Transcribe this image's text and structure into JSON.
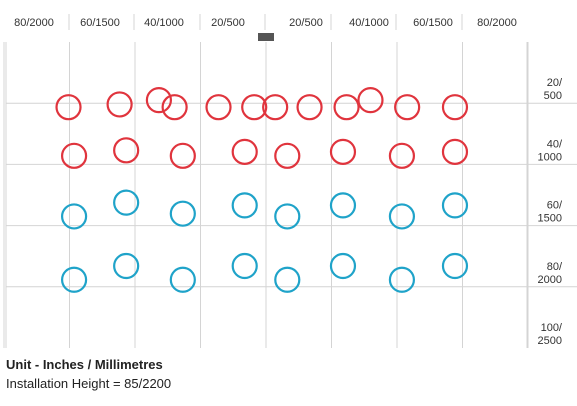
{
  "chart_data": {
    "type": "scatter",
    "title": "",
    "x_tick_labels": [
      "80/2000",
      "60/1500",
      "40/1000",
      "20/500",
      "20/500",
      "40/1000",
      "60/1500",
      "80/2000"
    ],
    "y_tick_labels": [
      {
        "line1": "20/",
        "line2": "500"
      },
      {
        "line1": "40/",
        "line2": "1000"
      },
      {
        "line1": "60/",
        "line2": "1500"
      },
      {
        "line1": "80/",
        "line2": "2000"
      },
      {
        "line1": "100/",
        "line2": "2500"
      }
    ],
    "x_range": [
      -90,
      90
    ],
    "y_range": [
      0,
      100
    ],
    "grid": true,
    "sensor_marker": {
      "x": 0,
      "y": 0
    },
    "colors": {
      "red": "#e0343d",
      "blue": "#1fa3c9",
      "grid": "#d4d4d4",
      "sensor": "#555555"
    },
    "series": [
      {
        "color": "red",
        "points": [
          {
            "x": -60.3,
            "y": 21.3
          },
          {
            "x": -44.7,
            "y": 20.4
          },
          {
            "x": -32.7,
            "y": 19.0
          },
          {
            "x": -27.9,
            "y": 21.3
          },
          {
            "x": -14.5,
            "y": 21.3
          },
          {
            "x": -3.6,
            "y": 21.3
          },
          {
            "x": 2.8,
            "y": 21.3
          },
          {
            "x": 13.3,
            "y": 21.3
          },
          {
            "x": 24.6,
            "y": 21.3
          },
          {
            "x": 31.9,
            "y": 19.0
          },
          {
            "x": 43.1,
            "y": 21.3
          },
          {
            "x": 57.7,
            "y": 21.3
          },
          {
            "x": -58.6,
            "y": 37.2
          },
          {
            "x": -42.7,
            "y": 35.4
          },
          {
            "x": -25.4,
            "y": 37.2
          },
          {
            "x": -6.5,
            "y": 35.9
          },
          {
            "x": 6.5,
            "y": 37.2
          },
          {
            "x": 23.5,
            "y": 35.9
          },
          {
            "x": 41.5,
            "y": 37.2
          },
          {
            "x": 57.7,
            "y": 35.9
          }
        ]
      },
      {
        "color": "blue",
        "points": [
          {
            "x": -58.6,
            "y": 57.0
          },
          {
            "x": -42.7,
            "y": 52.5
          },
          {
            "x": -25.4,
            "y": 56.1
          },
          {
            "x": -6.5,
            "y": 53.4
          },
          {
            "x": 6.5,
            "y": 57.0
          },
          {
            "x": 23.5,
            "y": 53.4
          },
          {
            "x": 41.5,
            "y": 57.0
          },
          {
            "x": 57.7,
            "y": 53.4
          },
          {
            "x": -58.6,
            "y": 77.7
          },
          {
            "x": -42.7,
            "y": 73.2
          },
          {
            "x": -25.4,
            "y": 77.7
          },
          {
            "x": -6.5,
            "y": 73.2
          },
          {
            "x": 6.5,
            "y": 77.7
          },
          {
            "x": 23.5,
            "y": 73.2
          },
          {
            "x": 41.5,
            "y": 77.7
          },
          {
            "x": 57.7,
            "y": 73.2
          }
        ]
      }
    ]
  },
  "caption": {
    "title": "Unit - Inches / Millimetres",
    "subtitle": "Installation Height = 85/2200"
  }
}
